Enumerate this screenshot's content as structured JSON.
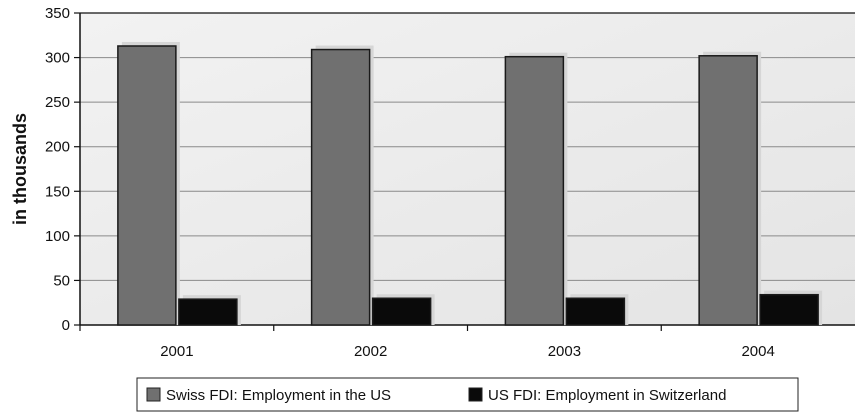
{
  "chart_data": {
    "type": "bar",
    "title": "",
    "xlabel": "",
    "ylabel": "in thousands",
    "ylim": [
      0,
      350
    ],
    "yticks": [
      0,
      50,
      100,
      150,
      200,
      250,
      300,
      350
    ],
    "categories": [
      "2001",
      "2002",
      "2003",
      "2004"
    ],
    "series": [
      {
        "name": "Swiss FDI: Employment in the US",
        "values": [
          313,
          309,
          301,
          302
        ],
        "color": "#707070"
      },
      {
        "name": "US FDI: Employment in Switzerland",
        "values": [
          29,
          30,
          30,
          34
        ],
        "color": "#0a0a0a"
      }
    ],
    "grid": true,
    "legend": "bottom"
  }
}
